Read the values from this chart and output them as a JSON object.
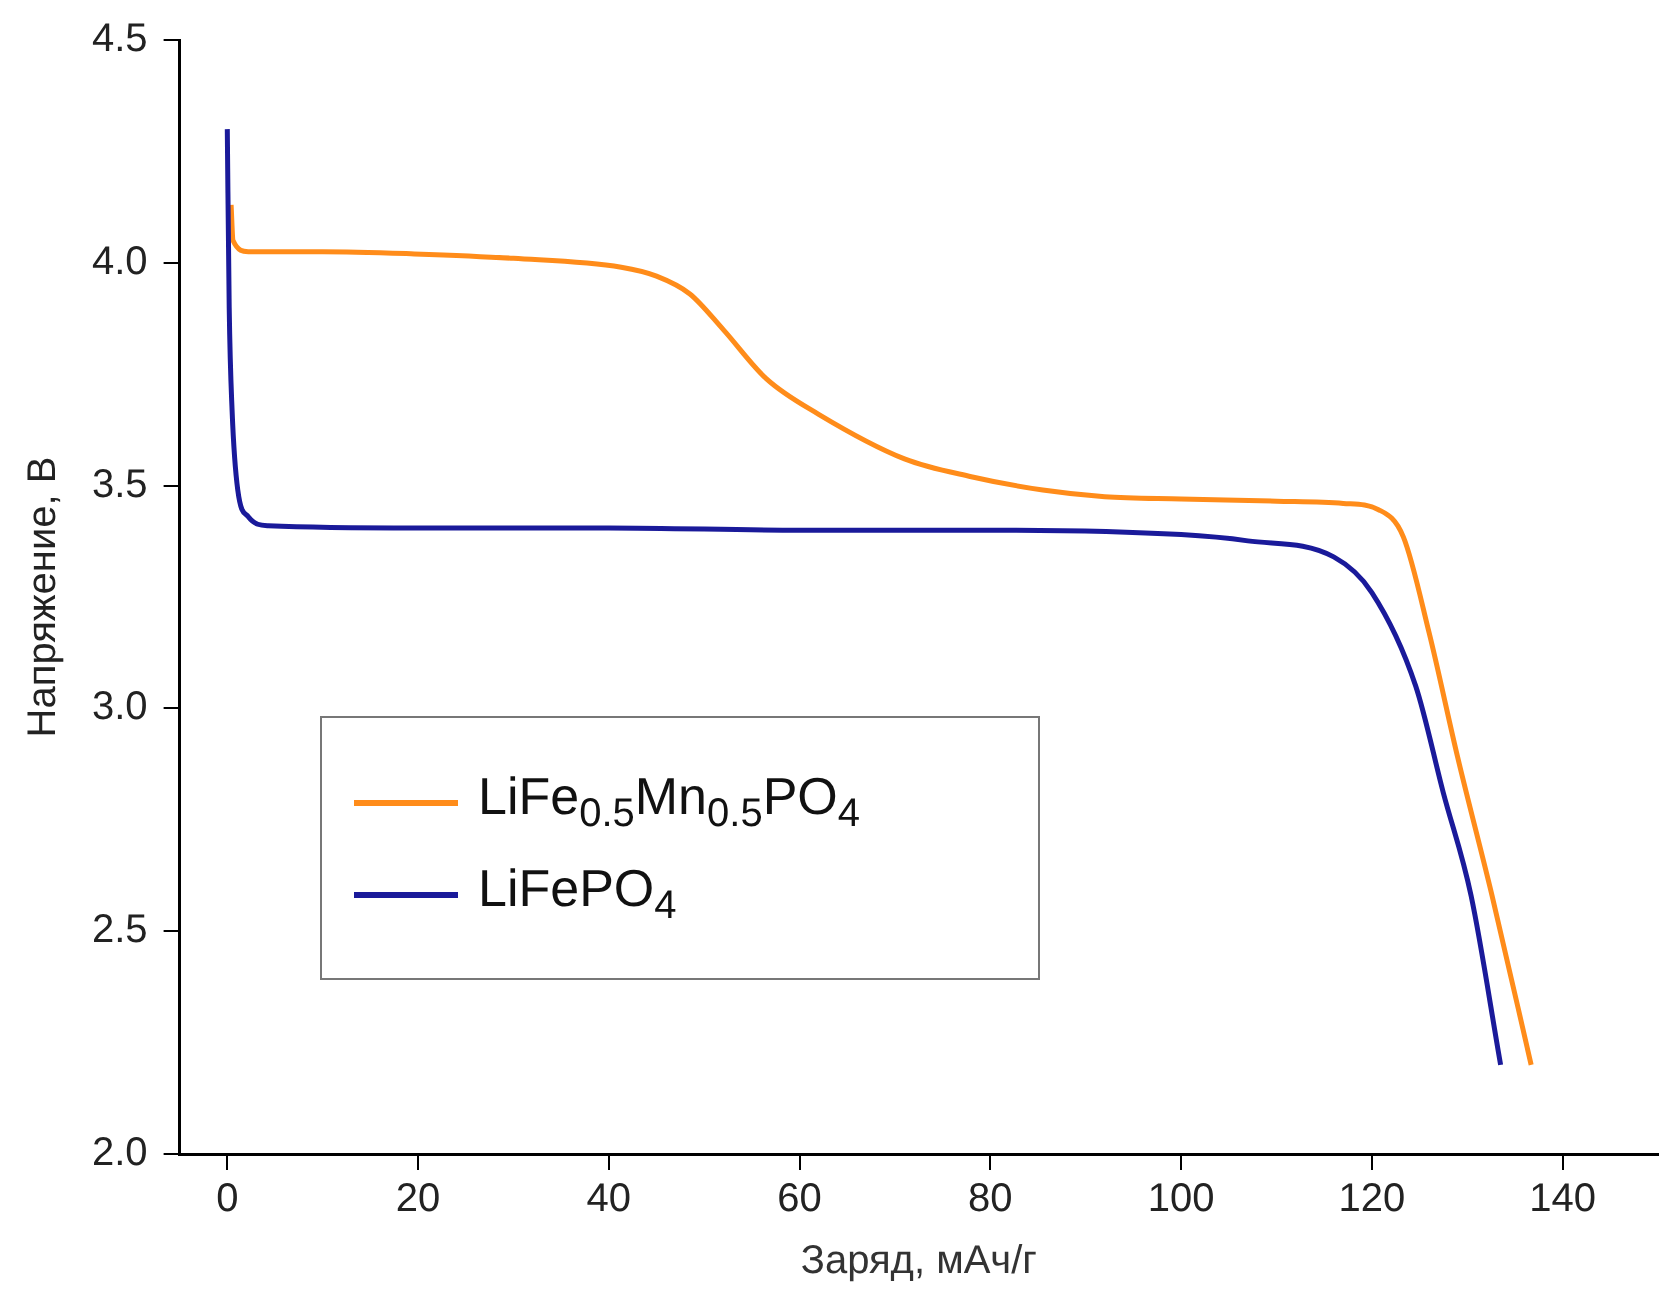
{
  "chart_data": {
    "type": "line",
    "xlabel": "Заряд, мАч/г",
    "ylabel": "Напряжение, В",
    "xlim": [
      -5,
      150
    ],
    "ylim": [
      2,
      4.5
    ],
    "xticks": [
      0,
      20,
      40,
      60,
      80,
      100,
      120,
      140
    ],
    "yticks": [
      {
        "value": 2,
        "label": "2.0"
      },
      {
        "value": 2.5,
        "label": "2.5"
      },
      {
        "value": 3,
        "label": "3.0"
      },
      {
        "value": 3.5,
        "label": "3.5"
      },
      {
        "value": 4,
        "label": "4.0"
      },
      {
        "value": 4.5,
        "label": "4.5"
      }
    ],
    "grid": false,
    "legend": "bottom left",
    "marker": "none",
    "line_style": "solid",
    "series": [
      {
        "name": "LiFe$_{0.5}$Mn$_{0.5}$PO$_{4}$",
        "color": "#ff8c1a",
        "x": [
          0.4,
          0.6,
          2.2,
          10,
          19.6,
          30,
          41.3,
          45,
          48.5,
          52,
          56.5,
          62,
          71,
          78,
          85.5,
          92,
          100,
          110,
          117,
          120.7,
          123.3,
          126,
          129,
          132.6,
          136.7
        ],
        "values": [
          4.13,
          4.05,
          4.025,
          4.025,
          4.02,
          4.01,
          3.99,
          3.97,
          3.93,
          3.85,
          3.74,
          3.66,
          3.56,
          3.52,
          3.49,
          3.475,
          3.47,
          3.465,
          3.46,
          3.446,
          3.385,
          3.17,
          2.89,
          2.58,
          2.2
        ]
      },
      {
        "name": "LiFePO$_{4}$",
        "color": "#1a1a9a",
        "x": [
          0,
          0.2,
          0.5,
          1.1,
          2.2,
          4.3,
          20,
          40,
          60,
          80,
          100,
          107,
          116,
          120,
          124.6,
          127.5,
          130.4,
          133.5
        ],
        "values": [
          4.3,
          3.9,
          3.67,
          3.49,
          3.43,
          3.41,
          3.405,
          3.405,
          3.4,
          3.4,
          3.39,
          3.376,
          3.34,
          3.26,
          3.05,
          2.81,
          2.58,
          2.2
        ]
      }
    ]
  }
}
